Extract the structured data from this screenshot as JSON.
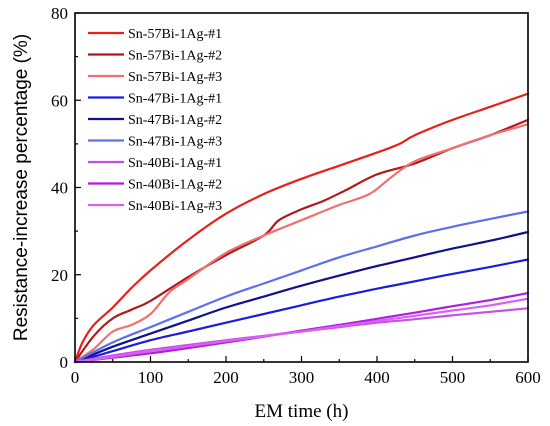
{
  "chart_data": {
    "type": "line",
    "xlabel": "EM time  (h)",
    "ylabel": "Resistance-increase percentage   (%)",
    "xlim": [
      0,
      600
    ],
    "ylim": [
      0,
      80
    ],
    "xticks": [
      0,
      100,
      200,
      300,
      400,
      500,
      600
    ],
    "yticks": [
      0,
      20,
      40,
      60,
      80
    ],
    "grid": false,
    "legend_position": "top-left",
    "series": [
      {
        "name": "Sn-57Bi-1Ag-#1",
        "color": "#e8201b",
        "x": [
          0,
          10,
          25,
          50,
          75,
          100,
          150,
          200,
          250,
          300,
          350,
          400,
          430,
          450,
          500,
          550,
          600
        ],
        "y": [
          0,
          4.5,
          8.5,
          12.5,
          17,
          21,
          28,
          34,
          38.5,
          42,
          45,
          48,
          50,
          52,
          55.5,
          58.5,
          61.5
        ]
      },
      {
        "name": "Sn-57Bi-1Ag-#2",
        "color": "#b01a1a",
        "x": [
          0,
          25,
          50,
          75,
          100,
          150,
          200,
          250,
          270,
          300,
          330,
          360,
          400,
          450,
          500,
          550,
          600
        ],
        "y": [
          0,
          6,
          10,
          12,
          14,
          19.5,
          24.5,
          29,
          32.5,
          35,
          37,
          39.5,
          43,
          45.5,
          49,
          52,
          55.5
        ]
      },
      {
        "name": "Sn-57Bi-1Ag-#3",
        "color": "#f07070",
        "x": [
          0,
          25,
          50,
          75,
          100,
          125,
          150,
          200,
          250,
          300,
          350,
          390,
          420,
          450,
          500,
          550,
          600
        ],
        "y": [
          0,
          3,
          7,
          8.5,
          11,
          16,
          19,
          25,
          29,
          32.5,
          36,
          38.5,
          42.5,
          46,
          49,
          52,
          54.5
        ]
      },
      {
        "name": "Sn-47Bi-1Ag-#1",
        "color": "#1c1ce0",
        "x": [
          0,
          50,
          100,
          150,
          200,
          250,
          300,
          350,
          400,
          450,
          500,
          550,
          600
        ],
        "y": [
          0,
          2.5,
          5,
          7,
          9,
          11,
          13,
          15,
          16.8,
          18.5,
          20.2,
          21.8,
          23.5
        ]
      },
      {
        "name": "Sn-47Bi-1Ag-#2",
        "color": "#101090",
        "x": [
          0,
          50,
          100,
          150,
          200,
          250,
          300,
          350,
          400,
          450,
          500,
          550,
          600
        ],
        "y": [
          0,
          3.5,
          6.5,
          9.5,
          12.5,
          15,
          17.5,
          19.8,
          22,
          24,
          26,
          27.8,
          29.8
        ]
      },
      {
        "name": "Sn-47Bi-1Ag-#3",
        "color": "#5a70ee",
        "x": [
          0,
          50,
          100,
          150,
          200,
          250,
          300,
          350,
          400,
          450,
          500,
          550,
          600
        ],
        "y": [
          0,
          4.5,
          8,
          11.5,
          15,
          18,
          21,
          24,
          26.5,
          29,
          31,
          32.8,
          34.5
        ]
      },
      {
        "name": "Sn-40Bi-1Ag-#1",
        "color": "#c84ee8",
        "x": [
          0,
          50,
          100,
          150,
          200,
          250,
          300,
          350,
          400,
          450,
          500,
          550,
          600
        ],
        "y": [
          0,
          1.5,
          2.8,
          3.9,
          5,
          6,
          7,
          8,
          9,
          9.8,
          10.7,
          11.5,
          12.3
        ]
      },
      {
        "name": "Sn-40Bi-1Ag-#2",
        "color": "#b01ce0",
        "x": [
          0,
          50,
          100,
          150,
          200,
          250,
          300,
          350,
          400,
          450,
          500,
          550,
          600
        ],
        "y": [
          0,
          1,
          2,
          3.2,
          4.5,
          5.8,
          7.2,
          8.5,
          9.9,
          11.3,
          12.8,
          14.2,
          15.8
        ]
      },
      {
        "name": "Sn-40Bi-1Ag-#3",
        "color": "#d860f4",
        "x": [
          0,
          50,
          100,
          150,
          200,
          250,
          300,
          350,
          400,
          450,
          500,
          550,
          600
        ],
        "y": [
          0,
          1.2,
          2.5,
          3.6,
          4.8,
          5.9,
          7,
          8.2,
          9.4,
          10.6,
          11.8,
          13,
          14.5
        ]
      }
    ]
  }
}
